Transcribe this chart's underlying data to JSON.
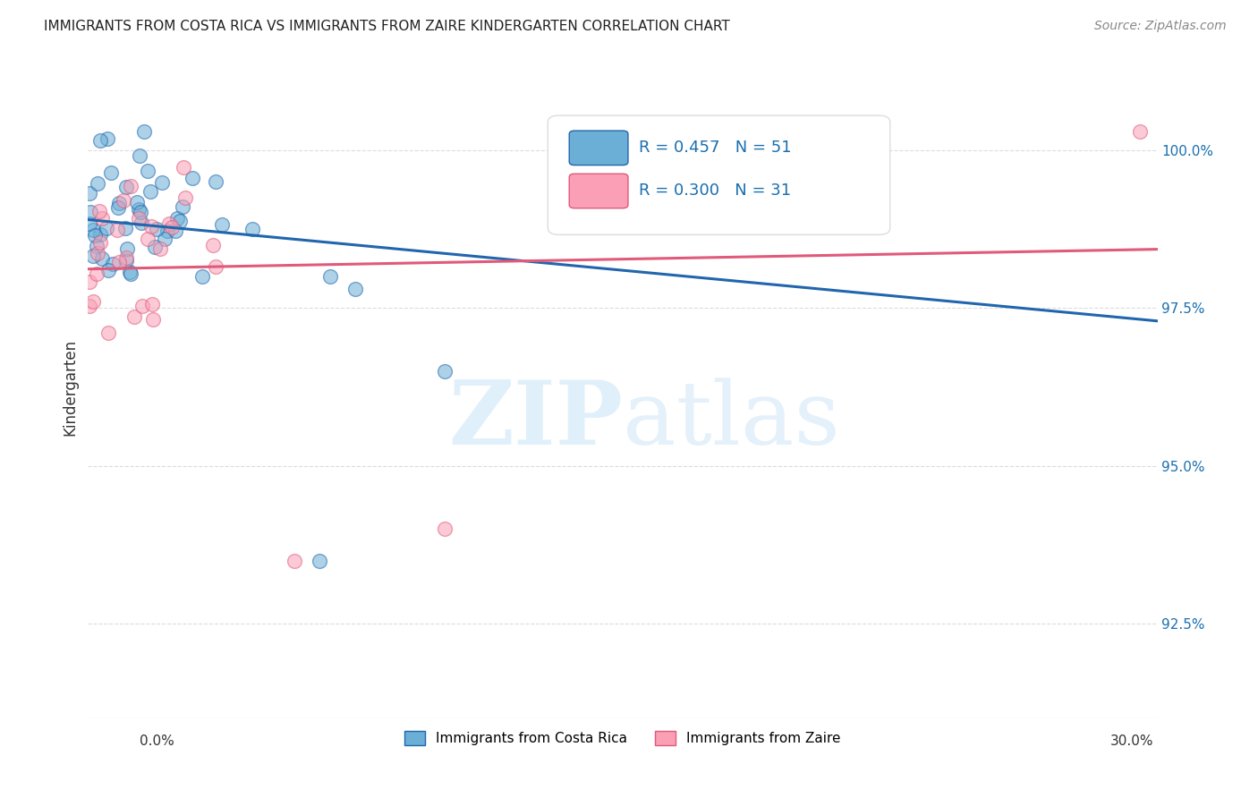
{
  "title": "IMMIGRANTS FROM COSTA RICA VS IMMIGRANTS FROM ZAIRE KINDERGARTEN CORRELATION CHART",
  "source": "Source: ZipAtlas.com",
  "ylabel": "Kindergarten",
  "y_ticks": [
    92.5,
    95.0,
    97.5,
    100.0
  ],
  "y_tick_labels": [
    "92.5%",
    "95.0%",
    "97.5%",
    "100.0%"
  ],
  "xlim": [
    0.0,
    30.0
  ],
  "ylim": [
    91.0,
    101.5
  ],
  "legend_r_blue": "R = 0.457",
  "legend_n_blue": "N = 51",
  "legend_r_pink": "R = 0.300",
  "legend_n_pink": "N = 31",
  "blue_color": "#6baed6",
  "pink_color": "#fa9fb5",
  "blue_line_color": "#2166ac",
  "pink_line_color": "#e05a7a",
  "legend_text_color": "#1a6faf"
}
